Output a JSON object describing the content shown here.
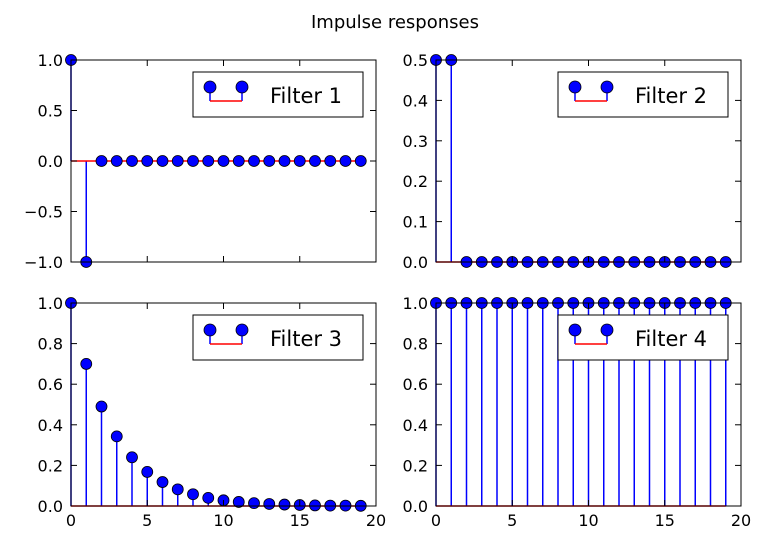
{
  "figure": {
    "title": "Impulse responses"
  },
  "colors": {
    "marker": "#0000ff",
    "stem": "#0000ff",
    "baseline": "#ff0000",
    "axes": "#000000",
    "background": "#ffffff"
  },
  "chart_data": [
    {
      "type": "stem",
      "legend": "Filter 1",
      "legend_position": "top-right",
      "x": [
        0,
        1,
        2,
        3,
        4,
        5,
        6,
        7,
        8,
        9,
        10,
        11,
        12,
        13,
        14,
        15,
        16,
        17,
        18,
        19
      ],
      "y": [
        1,
        -1,
        0,
        0,
        0,
        0,
        0,
        0,
        0,
        0,
        0,
        0,
        0,
        0,
        0,
        0,
        0,
        0,
        0,
        0
      ],
      "xlim": [
        0,
        20
      ],
      "ylim": [
        -1,
        1
      ],
      "yticks": [
        -1.0,
        -0.5,
        0.0,
        0.5,
        1.0
      ],
      "ytick_labels": [
        "−1.0",
        "−0.5",
        "0.0",
        "0.5",
        "1.0"
      ],
      "xticks": [
        0,
        5,
        10,
        15,
        20
      ],
      "xtick_labels": []
    },
    {
      "type": "stem",
      "legend": "Filter 2",
      "legend_position": "top-right",
      "x": [
        0,
        1,
        2,
        3,
        4,
        5,
        6,
        7,
        8,
        9,
        10,
        11,
        12,
        13,
        14,
        15,
        16,
        17,
        18,
        19
      ],
      "y": [
        0.5,
        0.5,
        0,
        0,
        0,
        0,
        0,
        0,
        0,
        0,
        0,
        0,
        0,
        0,
        0,
        0,
        0,
        0,
        0,
        0
      ],
      "xlim": [
        0,
        20
      ],
      "ylim": [
        0,
        0.5
      ],
      "yticks": [
        0.0,
        0.1,
        0.2,
        0.3,
        0.4,
        0.5
      ],
      "ytick_labels": [
        "0.0",
        "0.1",
        "0.2",
        "0.3",
        "0.4",
        "0.5"
      ],
      "xticks": [
        0,
        5,
        10,
        15,
        20
      ],
      "xtick_labels": []
    },
    {
      "type": "stem",
      "legend": "Filter 3",
      "legend_position": "top-right",
      "x": [
        0,
        1,
        2,
        3,
        4,
        5,
        6,
        7,
        8,
        9,
        10,
        11,
        12,
        13,
        14,
        15,
        16,
        17,
        18,
        19
      ],
      "y": [
        1.0,
        0.7,
        0.49,
        0.343,
        0.24,
        0.168,
        0.118,
        0.082,
        0.058,
        0.04,
        0.028,
        0.02,
        0.014,
        0.01,
        0.007,
        0.005,
        0.003,
        0.002,
        0.002,
        0.001
      ],
      "xlim": [
        0,
        20
      ],
      "ylim": [
        0,
        1
      ],
      "yticks": [
        0.0,
        0.2,
        0.4,
        0.6,
        0.8,
        1.0
      ],
      "ytick_labels": [
        "0.0",
        "0.2",
        "0.4",
        "0.6",
        "0.8",
        "1.0"
      ],
      "xticks": [
        0,
        5,
        10,
        15,
        20
      ],
      "xtick_labels": [
        "0",
        "5",
        "10",
        "15",
        "20"
      ]
    },
    {
      "type": "stem",
      "legend": "Filter 4",
      "legend_position": "top-right",
      "x": [
        0,
        1,
        2,
        3,
        4,
        5,
        6,
        7,
        8,
        9,
        10,
        11,
        12,
        13,
        14,
        15,
        16,
        17,
        18,
        19
      ],
      "y": [
        1,
        1,
        1,
        1,
        1,
        1,
        1,
        1,
        1,
        1,
        1,
        1,
        1,
        1,
        1,
        1,
        1,
        1,
        1,
        1
      ],
      "xlim": [
        0,
        20
      ],
      "ylim": [
        0,
        1
      ],
      "yticks": [
        0.0,
        0.2,
        0.4,
        0.6,
        0.8,
        1.0
      ],
      "ytick_labels": [
        "0.0",
        "0.2",
        "0.4",
        "0.6",
        "0.8",
        "1.0"
      ],
      "xticks": [
        0,
        5,
        10,
        15,
        20
      ],
      "xtick_labels": [
        "0",
        "5",
        "10",
        "15",
        "20"
      ]
    }
  ]
}
